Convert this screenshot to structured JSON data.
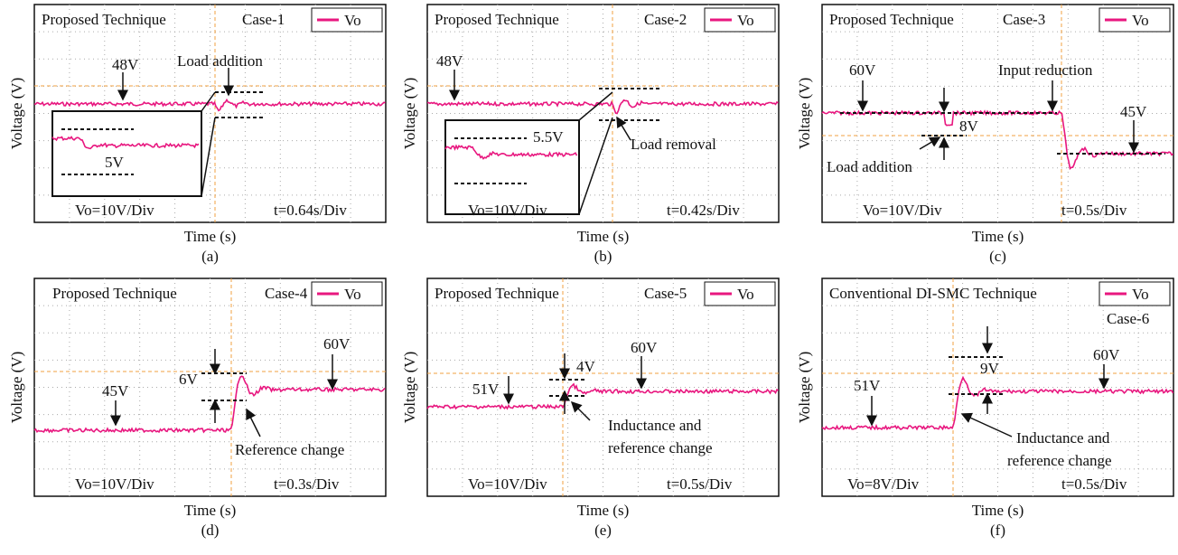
{
  "panels": [
    {
      "title": "Proposed Technique",
      "case": "Case-1",
      "legend": "Vo",
      "annotations": [
        "48V",
        "Load addition",
        "5V"
      ],
      "vdiv": "Vo=10V/Div",
      "tdiv": "t=0.64s/Div",
      "y_label": "Voltage (V)",
      "x_label": "Time (s)",
      "label": "(a)"
    },
    {
      "title": "Proposed Technique",
      "case": "Case-2",
      "legend": "Vo",
      "annotations": [
        "48V",
        "5.5V",
        "Load removal"
      ],
      "vdiv": "Vo=10V/Div",
      "tdiv": "t=0.42s/Div",
      "y_label": "Voltage (V)",
      "x_label": "Time (s)",
      "label": "(b)"
    },
    {
      "title": "Proposed Technique",
      "case": "Case-3",
      "legend": "Vo",
      "annotations": [
        "60V",
        "Input reduction",
        "8V",
        "45V",
        "Load addition"
      ],
      "vdiv": "Vo=10V/Div",
      "tdiv": "t=0.5s/Div",
      "y_label": "Voltage (V)",
      "x_label": "Time (s)",
      "label": "(c)"
    },
    {
      "title": "Proposed Technique",
      "case": "Case-4",
      "legend": "Vo",
      "annotations": [
        "6V",
        "60V",
        "45V",
        "Reference change"
      ],
      "vdiv": "Vo=10V/Div",
      "tdiv": "t=0.3s/Div",
      "y_label": "Voltage (V)",
      "x_label": "Time (s)",
      "label": "(d)"
    },
    {
      "title": "Proposed Technique",
      "case": "Case-5",
      "legend": "Vo",
      "annotations": [
        "51V",
        "4V",
        "60V",
        "Inductance and",
        "reference change"
      ],
      "vdiv": "Vo=10V/Div",
      "tdiv": "t=0.5s/Div",
      "y_label": "Voltage (V)",
      "x_label": "Time (s)",
      "label": "(e)"
    },
    {
      "title": "Conventional DI-SMC Technique",
      "case": "Case-6",
      "legend": "Vo",
      "annotations": [
        "9V",
        "60V",
        "51V",
        "Inductance and",
        "reference change"
      ],
      "vdiv": "Vo=8V/Div",
      "tdiv": "t=0.5s/Div",
      "y_label": "Voltage (V)",
      "x_label": "Time (s)",
      "label": "(f)"
    }
  ]
}
